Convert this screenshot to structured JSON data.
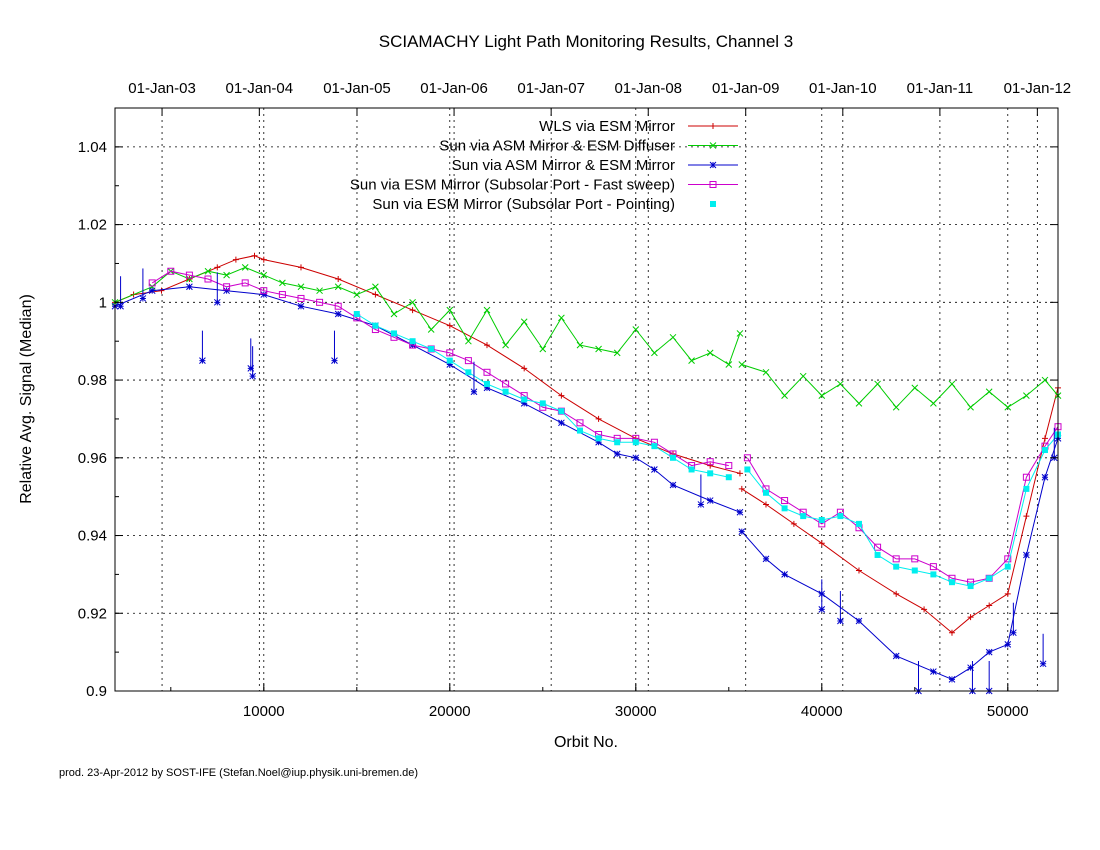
{
  "chart_data": {
    "type": "line",
    "title": "SCIAMACHY Light Path Monitoring Results, Channel 3",
    "xlabel": "Orbit No.",
    "ylabel": "Relative Avg. Signal (Median)",
    "xlim": [
      2000,
      52700
    ],
    "ylim": [
      0.9,
      1.05
    ],
    "x_ticks": [
      10000,
      20000,
      30000,
      40000,
      50000
    ],
    "x_tick_labels": [
      "10000",
      "20000",
      "30000",
      "40000",
      "50000"
    ],
    "y_ticks": [
      0.9,
      0.92,
      0.94,
      0.96,
      0.98,
      1.0,
      1.02,
      1.04
    ],
    "y_tick_labels": [
      "0.9",
      "0.92",
      "0.94",
      "0.96",
      "0.98",
      "1",
      "1.02",
      "1.04"
    ],
    "top_axis": {
      "tick_orbits": [
        4530,
        9760,
        15010,
        20230,
        25450,
        30670,
        35910,
        41130,
        46350,
        51590
      ],
      "tick_labels": [
        "01-Jan-03",
        "01-Jan-04",
        "01-Jan-05",
        "01-Jan-06",
        "01-Jan-07",
        "01-Jan-08",
        "01-Jan-09",
        "01-Jan-10",
        "01-Jan-11",
        "01-Jan-12"
      ]
    },
    "grid": true,
    "legend_position": "top-right",
    "series": [
      {
        "name": "WLS via ESM Mirror",
        "color": "#cc0000",
        "marker": "plus",
        "points": [
          [
            2000,
            1.0
          ],
          [
            3000,
            1.002
          ],
          [
            4500,
            1.003
          ],
          [
            6000,
            1.006
          ],
          [
            7500,
            1.009
          ],
          [
            8500,
            1.011
          ],
          [
            9500,
            1.012
          ],
          [
            10000,
            1.011
          ],
          [
            12000,
            1.009
          ],
          [
            14000,
            1.006
          ],
          [
            16000,
            1.002
          ],
          [
            18000,
            0.998
          ],
          [
            20000,
            0.994
          ],
          [
            22000,
            0.989
          ],
          [
            24000,
            0.983
          ],
          [
            26000,
            0.976
          ],
          [
            28000,
            0.97
          ],
          [
            30000,
            0.965
          ],
          [
            32000,
            0.961
          ],
          [
            34000,
            0.958
          ],
          [
            35600,
            0.956
          ],
          [
            35700,
            0.952
          ],
          [
            37000,
            0.948
          ],
          [
            38500,
            0.943
          ],
          [
            40000,
            0.938
          ],
          [
            42000,
            0.931
          ],
          [
            44000,
            0.925
          ],
          [
            45500,
            0.921
          ],
          [
            47000,
            0.915
          ],
          [
            48000,
            0.919
          ],
          [
            49000,
            0.922
          ],
          [
            50000,
            0.925
          ],
          [
            51000,
            0.945
          ],
          [
            52000,
            0.965
          ],
          [
            52700,
            0.978
          ]
        ]
      },
      {
        "name": "Sun via ASM Mirror & ESM Diffuser",
        "color": "#00cc00",
        "marker": "cross",
        "points": [
          [
            2000,
            1.0
          ],
          [
            4000,
            1.004
          ],
          [
            5000,
            1.008
          ],
          [
            6000,
            1.006
          ],
          [
            7000,
            1.008
          ],
          [
            8000,
            1.007
          ],
          [
            9000,
            1.009
          ],
          [
            10000,
            1.007
          ],
          [
            11000,
            1.005
          ],
          [
            12000,
            1.004
          ],
          [
            13000,
            1.003
          ],
          [
            14000,
            1.004
          ],
          [
            15000,
            1.002
          ],
          [
            16000,
            1.004
          ],
          [
            17000,
            0.997
          ],
          [
            18000,
            1.0
          ],
          [
            19000,
            0.993
          ],
          [
            20000,
            0.998
          ],
          [
            21000,
            0.99
          ],
          [
            22000,
            0.998
          ],
          [
            23000,
            0.989
          ],
          [
            24000,
            0.995
          ],
          [
            25000,
            0.988
          ],
          [
            26000,
            0.996
          ],
          [
            27000,
            0.989
          ],
          [
            28000,
            0.988
          ],
          [
            29000,
            0.987
          ],
          [
            30000,
            0.993
          ],
          [
            31000,
            0.987
          ],
          [
            32000,
            0.991
          ],
          [
            33000,
            0.985
          ],
          [
            34000,
            0.987
          ],
          [
            35000,
            0.984
          ],
          [
            35600,
            0.992
          ],
          [
            35700,
            0.984
          ],
          [
            37000,
            0.982
          ],
          [
            38000,
            0.976
          ],
          [
            39000,
            0.981
          ],
          [
            40000,
            0.976
          ],
          [
            41000,
            0.979
          ],
          [
            42000,
            0.974
          ],
          [
            43000,
            0.979
          ],
          [
            44000,
            0.973
          ],
          [
            45000,
            0.978
          ],
          [
            46000,
            0.974
          ],
          [
            47000,
            0.979
          ],
          [
            48000,
            0.973
          ],
          [
            49000,
            0.977
          ],
          [
            50000,
            0.973
          ],
          [
            51000,
            0.976
          ],
          [
            52000,
            0.98
          ],
          [
            52700,
            0.976
          ]
        ]
      },
      {
        "name": "Sun via ASM Mirror & ESM Mirror",
        "color": "#0000cc",
        "marker": "star",
        "points": [
          [
            2000,
            0.999
          ],
          [
            4000,
            1.003
          ],
          [
            6000,
            1.004
          ],
          [
            8000,
            1.003
          ],
          [
            10000,
            1.002
          ],
          [
            12000,
            0.999
          ],
          [
            14000,
            0.997
          ],
          [
            16000,
            0.994
          ],
          [
            18000,
            0.989
          ],
          [
            20000,
            0.984
          ],
          [
            22000,
            0.978
          ],
          [
            24000,
            0.974
          ],
          [
            26000,
            0.969
          ],
          [
            28000,
            0.964
          ],
          [
            29000,
            0.961
          ],
          [
            30000,
            0.96
          ],
          [
            31000,
            0.957
          ],
          [
            32000,
            0.953
          ],
          [
            34000,
            0.949
          ],
          [
            35600,
            0.946
          ],
          [
            35700,
            0.941
          ],
          [
            37000,
            0.934
          ],
          [
            38000,
            0.93
          ],
          [
            40000,
            0.925
          ],
          [
            42000,
            0.918
          ],
          [
            44000,
            0.909
          ],
          [
            46000,
            0.905
          ],
          [
            47000,
            0.903
          ],
          [
            48000,
            0.906
          ],
          [
            49000,
            0.91
          ],
          [
            50000,
            0.912
          ],
          [
            51000,
            0.935
          ],
          [
            52000,
            0.955
          ],
          [
            52700,
            0.965
          ]
        ]
      },
      {
        "name": "Sun via ESM Mirror (Subsolar Port - Fast sweep)",
        "color": "#cc00cc",
        "marker": "square-open",
        "points": [
          [
            4000,
            1.005
          ],
          [
            5000,
            1.008
          ],
          [
            6000,
            1.007
          ],
          [
            7000,
            1.006
          ],
          [
            8000,
            1.004
          ],
          [
            9000,
            1.005
          ],
          [
            10000,
            1.003
          ],
          [
            11000,
            1.002
          ],
          [
            12000,
            1.001
          ],
          [
            13000,
            1.0
          ],
          [
            14000,
            0.999
          ],
          [
            15000,
            0.996
          ],
          [
            16000,
            0.993
          ],
          [
            17000,
            0.991
          ],
          [
            18000,
            0.989
          ],
          [
            19000,
            0.988
          ],
          [
            20000,
            0.987
          ],
          [
            21000,
            0.985
          ],
          [
            22000,
            0.982
          ],
          [
            23000,
            0.979
          ],
          [
            24000,
            0.976
          ],
          [
            25000,
            0.973
          ],
          [
            26000,
            0.972
          ],
          [
            27000,
            0.969
          ],
          [
            28000,
            0.966
          ],
          [
            29000,
            0.965
          ],
          [
            30000,
            0.965
          ],
          [
            31000,
            0.964
          ],
          [
            32000,
            0.961
          ],
          [
            33000,
            0.958
          ],
          [
            34000,
            0.959
          ],
          [
            35000,
            0.958
          ],
          [
            36000,
            0.96
          ],
          [
            37000,
            0.952
          ],
          [
            38000,
            0.949
          ],
          [
            39000,
            0.946
          ],
          [
            40000,
            0.943
          ],
          [
            41000,
            0.946
          ],
          [
            42000,
            0.942
          ],
          [
            43000,
            0.937
          ],
          [
            44000,
            0.934
          ],
          [
            45000,
            0.934
          ],
          [
            46000,
            0.932
          ],
          [
            47000,
            0.929
          ],
          [
            48000,
            0.928
          ],
          [
            49000,
            0.929
          ],
          [
            50000,
            0.934
          ],
          [
            51000,
            0.955
          ],
          [
            52000,
            0.963
          ],
          [
            52700,
            0.968
          ]
        ]
      },
      {
        "name": "Sun via ESM Mirror (Subsolar Port - Pointing)",
        "color": "#00eeee",
        "marker": "square-filled",
        "points": [
          [
            15000,
            0.997
          ],
          [
            16000,
            0.994
          ],
          [
            17000,
            0.992
          ],
          [
            18000,
            0.99
          ],
          [
            19000,
            0.988
          ],
          [
            20000,
            0.985
          ],
          [
            21000,
            0.982
          ],
          [
            22000,
            0.979
          ],
          [
            23000,
            0.977
          ],
          [
            24000,
            0.975
          ],
          [
            25000,
            0.974
          ],
          [
            26000,
            0.972
          ],
          [
            27000,
            0.967
          ],
          [
            28000,
            0.965
          ],
          [
            29000,
            0.964
          ],
          [
            30000,
            0.964
          ],
          [
            31000,
            0.963
          ],
          [
            32000,
            0.96
          ],
          [
            33000,
            0.957
          ],
          [
            34000,
            0.956
          ],
          [
            35000,
            0.955
          ],
          [
            36000,
            0.957
          ],
          [
            37000,
            0.951
          ],
          [
            38000,
            0.947
          ],
          [
            39000,
            0.945
          ],
          [
            40000,
            0.944
          ],
          [
            41000,
            0.945
          ],
          [
            42000,
            0.943
          ],
          [
            43000,
            0.935
          ],
          [
            44000,
            0.932
          ],
          [
            45000,
            0.931
          ],
          [
            46000,
            0.93
          ],
          [
            47000,
            0.928
          ],
          [
            48000,
            0.927
          ],
          [
            49000,
            0.929
          ],
          [
            50000,
            0.932
          ],
          [
            51000,
            0.952
          ],
          [
            52000,
            0.962
          ],
          [
            52700,
            0.966
          ]
        ]
      }
    ],
    "spikes": {
      "series": "Sun via ASM Mirror & ESM Mirror",
      "points": [
        [
          2300,
          0.999
        ],
        [
          3500,
          1.001
        ],
        [
          6700,
          0.985
        ],
        [
          7500,
          1.0
        ],
        [
          9300,
          0.983
        ],
        [
          9400,
          0.981
        ],
        [
          13800,
          0.985
        ],
        [
          21300,
          0.977
        ],
        [
          33500,
          0.948
        ],
        [
          40000,
          0.921
        ],
        [
          41000,
          0.918
        ],
        [
          45200,
          0.9
        ],
        [
          48100,
          0.9
        ],
        [
          49000,
          0.9
        ],
        [
          50300,
          0.915
        ],
        [
          51900,
          0.907
        ],
        [
          52500,
          0.96
        ]
      ]
    }
  },
  "footer": "prod. 23-Apr-2012 by SOST-IFE (Stefan.Noel@iup.physik.uni-bremen.de)"
}
